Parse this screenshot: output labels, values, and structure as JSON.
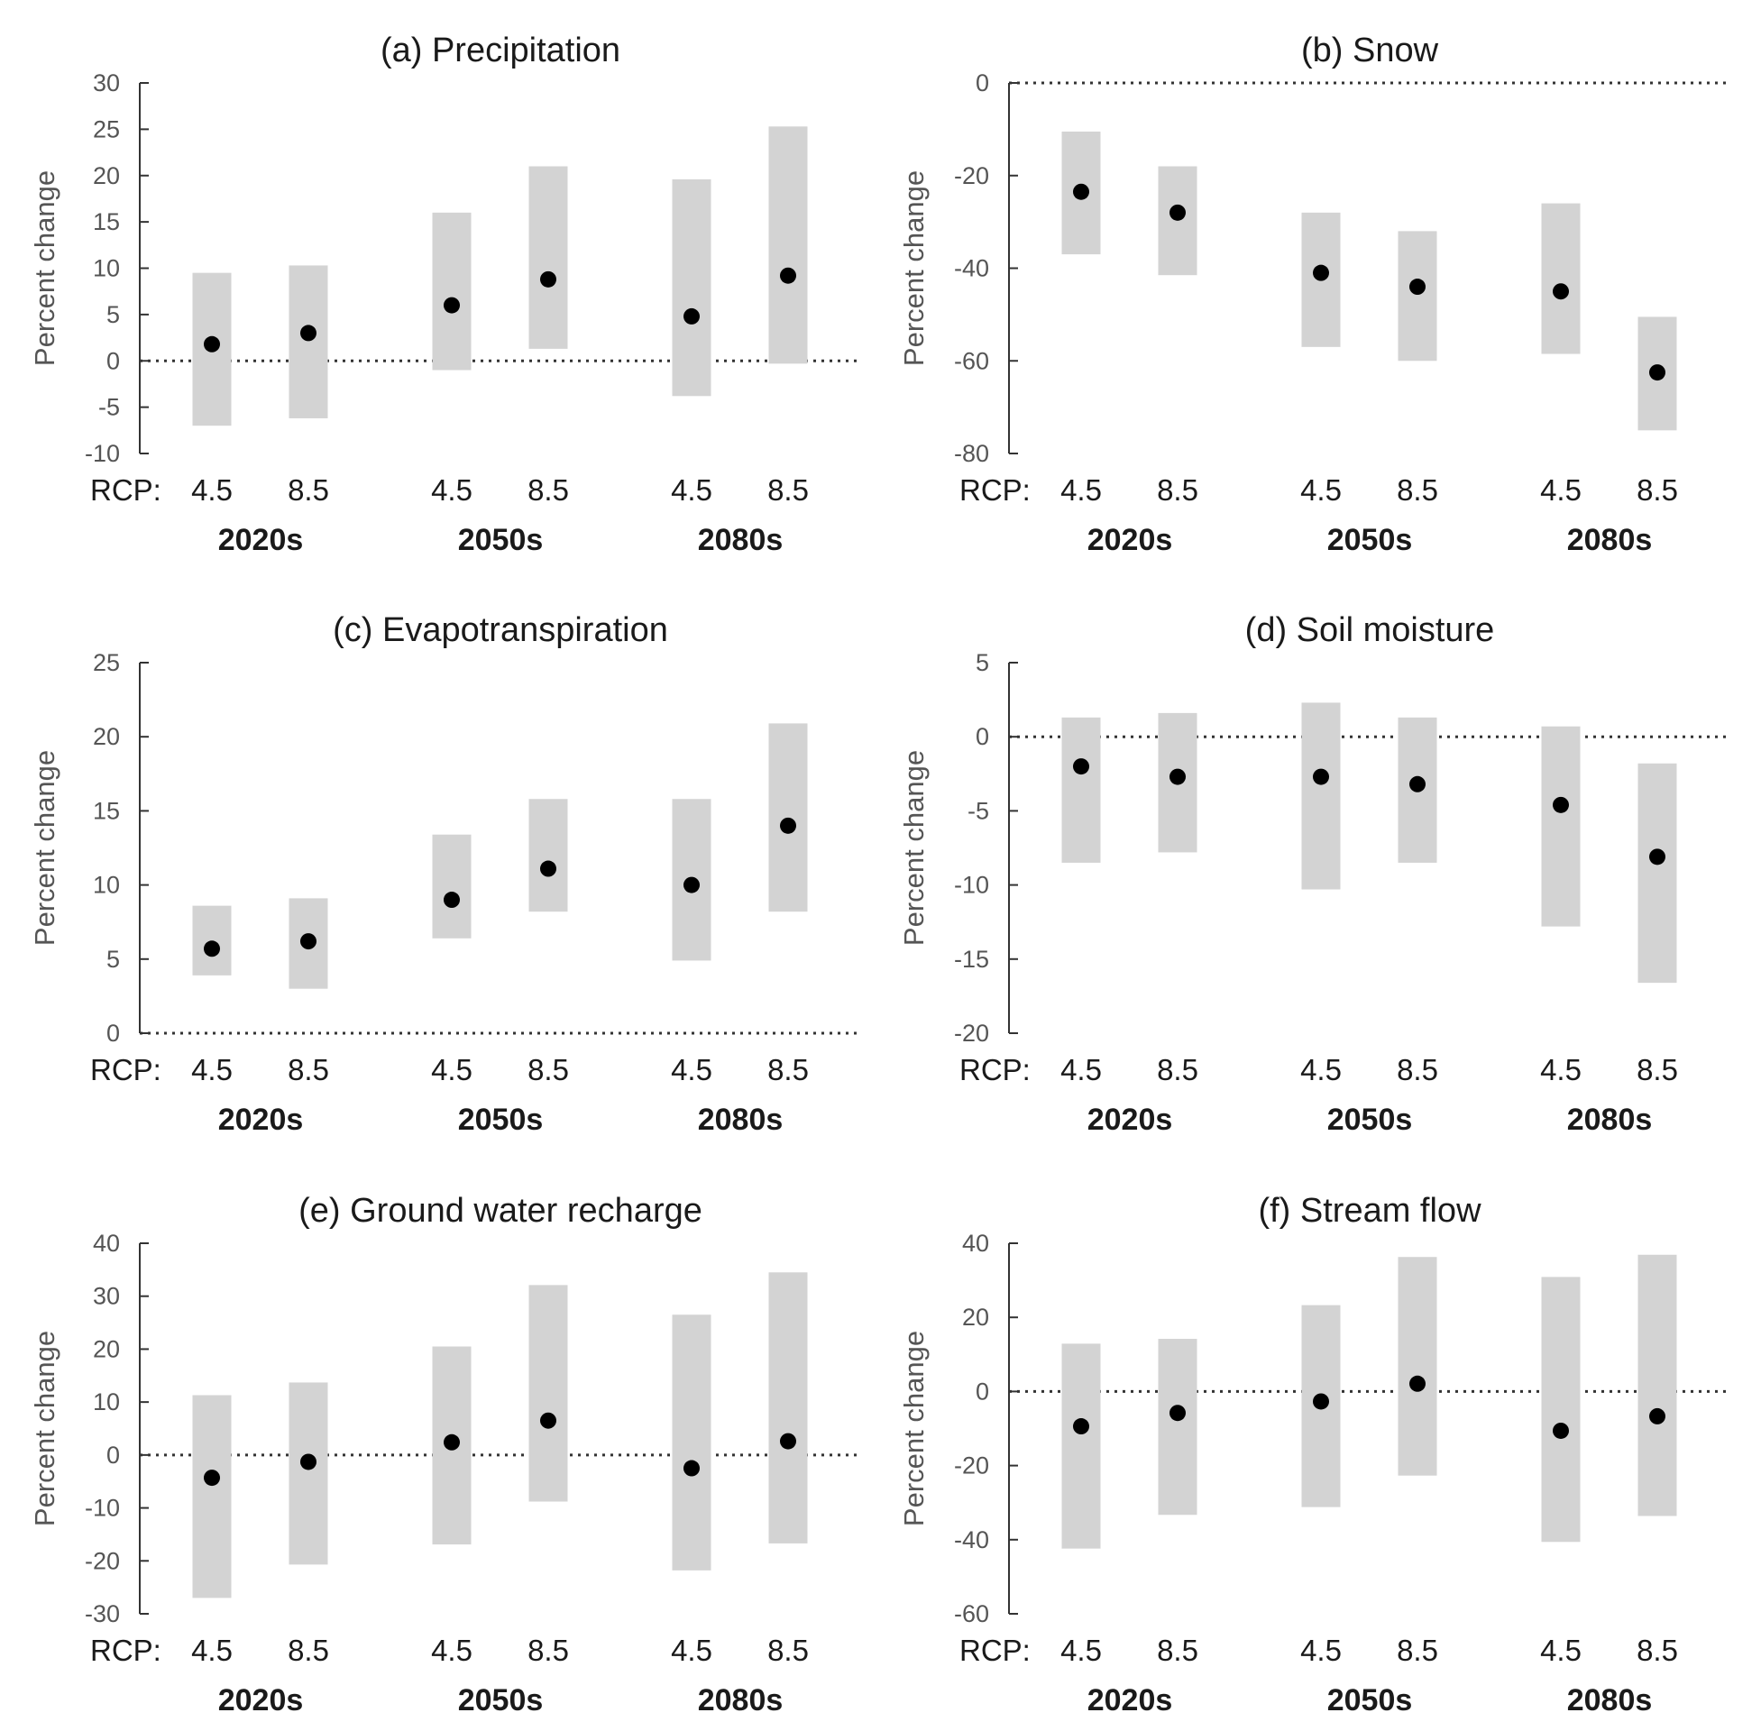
{
  "chart_data": [
    {
      "type": "range-dot",
      "title": "(a) Precipitation",
      "ylabel": "Percent change",
      "ylim": [
        -10,
        30
      ],
      "yticks": [
        -10,
        -5,
        0,
        5,
        10,
        15,
        20,
        25,
        30
      ],
      "rcp_prefix": "RCP:",
      "groups": [
        "2020s",
        "2050s",
        "2080s"
      ],
      "scenarios": [
        "4.5",
        "8.5"
      ],
      "points": [
        {
          "group": "2020s",
          "rcp": "4.5",
          "low": -7,
          "high": 9.5,
          "mean": 1.8
        },
        {
          "group": "2020s",
          "rcp": "8.5",
          "low": -6.2,
          "high": 10.3,
          "mean": 3
        },
        {
          "group": "2050s",
          "rcp": "4.5",
          "low": -1,
          "high": 16,
          "mean": 6
        },
        {
          "group": "2050s",
          "rcp": "8.5",
          "low": 1.3,
          "high": 21,
          "mean": 8.8
        },
        {
          "group": "2080s",
          "rcp": "4.5",
          "low": -3.8,
          "high": 19.6,
          "mean": 4.8
        },
        {
          "group": "2080s",
          "rcp": "8.5",
          "low": -0.3,
          "high": 25.3,
          "mean": 9.2
        }
      ]
    },
    {
      "type": "range-dot",
      "title": "(b) Snow",
      "ylabel": "Percent change",
      "ylim": [
        -80,
        0
      ],
      "yticks": [
        -80,
        -60,
        -40,
        -20,
        0
      ],
      "rcp_prefix": "RCP:",
      "groups": [
        "2020s",
        "2050s",
        "2080s"
      ],
      "scenarios": [
        "4.5",
        "8.5"
      ],
      "points": [
        {
          "group": "2020s",
          "rcp": "4.5",
          "low": -37,
          "high": -10.5,
          "mean": -23.5
        },
        {
          "group": "2020s",
          "rcp": "8.5",
          "low": -41.5,
          "high": -18,
          "mean": -28
        },
        {
          "group": "2050s",
          "rcp": "4.5",
          "low": -57,
          "high": -28,
          "mean": -41
        },
        {
          "group": "2050s",
          "rcp": "8.5",
          "low": -60,
          "high": -32,
          "mean": -44
        },
        {
          "group": "2080s",
          "rcp": "4.5",
          "low": -58.5,
          "high": -26,
          "mean": -45
        },
        {
          "group": "2080s",
          "rcp": "8.5",
          "low": -75,
          "high": -50.5,
          "mean": -62.5
        }
      ]
    },
    {
      "type": "range-dot",
      "title": "(c) Evapotranspiration",
      "ylabel": "Percent change",
      "ylim": [
        0,
        25
      ],
      "yticks": [
        0,
        5,
        10,
        15,
        20,
        25
      ],
      "rcp_prefix": "RCP:",
      "groups": [
        "2020s",
        "2050s",
        "2080s"
      ],
      "scenarios": [
        "4.5",
        "8.5"
      ],
      "points": [
        {
          "group": "2020s",
          "rcp": "4.5",
          "low": 3.9,
          "high": 8.6,
          "mean": 5.7
        },
        {
          "group": "2020s",
          "rcp": "8.5",
          "low": 3,
          "high": 9.1,
          "mean": 6.2
        },
        {
          "group": "2050s",
          "rcp": "4.5",
          "low": 6.4,
          "high": 13.4,
          "mean": 9
        },
        {
          "group": "2050s",
          "rcp": "8.5",
          "low": 8.2,
          "high": 15.8,
          "mean": 11.1
        },
        {
          "group": "2080s",
          "rcp": "4.5",
          "low": 4.9,
          "high": 15.8,
          "mean": 10
        },
        {
          "group": "2080s",
          "rcp": "8.5",
          "low": 8.2,
          "high": 20.9,
          "mean": 14
        }
      ]
    },
    {
      "type": "range-dot",
      "title": "(d) Soil moisture",
      "ylabel": "Percent change",
      "ylim": [
        -20,
        5
      ],
      "yticks": [
        -20,
        -15,
        -10,
        -5,
        0,
        5
      ],
      "rcp_prefix": "RCP:",
      "groups": [
        "2020s",
        "2050s",
        "2080s"
      ],
      "scenarios": [
        "4.5",
        "8.5"
      ],
      "points": [
        {
          "group": "2020s",
          "rcp": "4.5",
          "low": -8.5,
          "high": 1.3,
          "mean": -2
        },
        {
          "group": "2020s",
          "rcp": "8.5",
          "low": -7.8,
          "high": 1.6,
          "mean": -2.7
        },
        {
          "group": "2050s",
          "rcp": "4.5",
          "low": -10.3,
          "high": 2.3,
          "mean": -2.7
        },
        {
          "group": "2050s",
          "rcp": "8.5",
          "low": -8.5,
          "high": 1.3,
          "mean": -3.2
        },
        {
          "group": "2080s",
          "rcp": "4.5",
          "low": -12.8,
          "high": 0.7,
          "mean": -4.6
        },
        {
          "group": "2080s",
          "rcp": "8.5",
          "low": -16.6,
          "high": -1.8,
          "mean": -8.1
        }
      ]
    },
    {
      "type": "range-dot",
      "title": "(e) Ground water recharge",
      "ylabel": "Percent change",
      "ylim": [
        -30,
        40
      ],
      "yticks": [
        -30,
        -20,
        -10,
        0,
        10,
        20,
        30,
        40
      ],
      "rcp_prefix": "RCP:",
      "groups": [
        "2020s",
        "2050s",
        "2080s"
      ],
      "scenarios": [
        "4.5",
        "8.5"
      ],
      "points": [
        {
          "group": "2020s",
          "rcp": "4.5",
          "low": -27,
          "high": 11.3,
          "mean": -4.3
        },
        {
          "group": "2020s",
          "rcp": "8.5",
          "low": -20.7,
          "high": 13.7,
          "mean": -1.3
        },
        {
          "group": "2050s",
          "rcp": "4.5",
          "low": -16.9,
          "high": 20.5,
          "mean": 2.4
        },
        {
          "group": "2050s",
          "rcp": "8.5",
          "low": -8.8,
          "high": 32.1,
          "mean": 6.5
        },
        {
          "group": "2080s",
          "rcp": "4.5",
          "low": -21.8,
          "high": 26.5,
          "mean": -2.5
        },
        {
          "group": "2080s",
          "rcp": "8.5",
          "low": -16.7,
          "high": 34.5,
          "mean": 2.6
        }
      ]
    },
    {
      "type": "range-dot",
      "title": "(f) Stream flow",
      "ylabel": "Percent change",
      "ylim": [
        -60,
        40
      ],
      "yticks": [
        -60,
        -40,
        -20,
        0,
        20,
        40
      ],
      "rcp_prefix": "RCP:",
      "groups": [
        "2020s",
        "2050s",
        "2080s"
      ],
      "scenarios": [
        "4.5",
        "8.5"
      ],
      "points": [
        {
          "group": "2020s",
          "rcp": "4.5",
          "low": -42.4,
          "high": 12.9,
          "mean": -9.4
        },
        {
          "group": "2020s",
          "rcp": "8.5",
          "low": -33.3,
          "high": 14.2,
          "mean": -5.8
        },
        {
          "group": "2050s",
          "rcp": "4.5",
          "low": -31.2,
          "high": 23.3,
          "mean": -2.7
        },
        {
          "group": "2050s",
          "rcp": "8.5",
          "low": -22.7,
          "high": 36.3,
          "mean": 2.1
        },
        {
          "group": "2080s",
          "rcp": "4.5",
          "low": -40.6,
          "high": 30.9,
          "mean": -10.6
        },
        {
          "group": "2080s",
          "rcp": "8.5",
          "low": -33.6,
          "high": 36.9,
          "mean": -6.7
        }
      ]
    }
  ]
}
